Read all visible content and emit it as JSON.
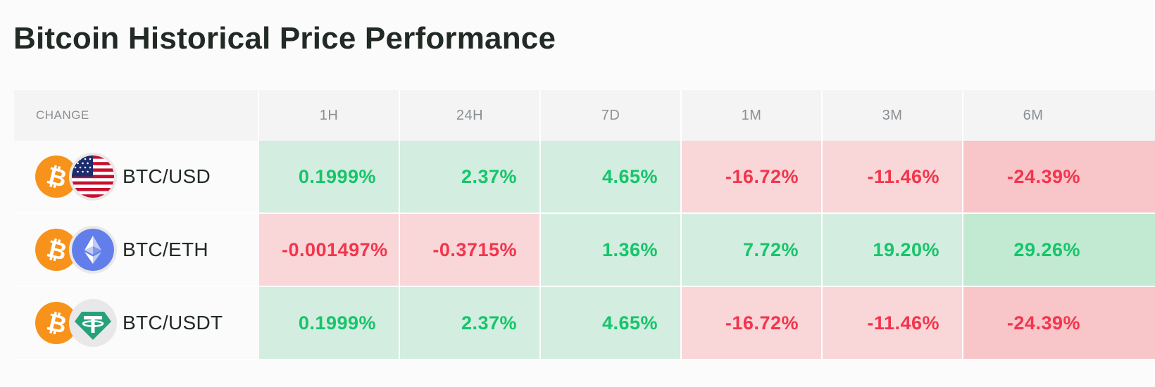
{
  "title": "Bitcoin Historical Price Performance",
  "columns": [
    "CHANGE",
    "1H",
    "24H",
    "7D",
    "1M",
    "3M",
    "6M"
  ],
  "rows": [
    {
      "pair": "BTC/USD",
      "base_icon": "bitcoin-icon",
      "quote_icon": "us-flag-icon",
      "values": [
        "0.1999%",
        "2.37%",
        "4.65%",
        "-16.72%",
        "-11.46%",
        "-24.39%"
      ]
    },
    {
      "pair": "BTC/ETH",
      "base_icon": "bitcoin-icon",
      "quote_icon": "ethereum-icon",
      "values": [
        "-0.001497%",
        "-0.3715%",
        "1.36%",
        "7.72%",
        "19.20%",
        "29.26%"
      ]
    },
    {
      "pair": "BTC/USDT",
      "base_icon": "bitcoin-icon",
      "quote_icon": "tether-icon",
      "values": [
        "0.1999%",
        "2.37%",
        "4.65%",
        "-16.72%",
        "-11.46%",
        "-24.39%"
      ]
    }
  ],
  "colors": {
    "positive_text": "#16c56a",
    "negative_text": "#f2354c",
    "positive_bg": "#d3ede0",
    "negative_bg": "#f9d6d8",
    "bitcoin": "#f7931a",
    "ethereum": "#627eea",
    "tether": "#26a17b"
  }
}
